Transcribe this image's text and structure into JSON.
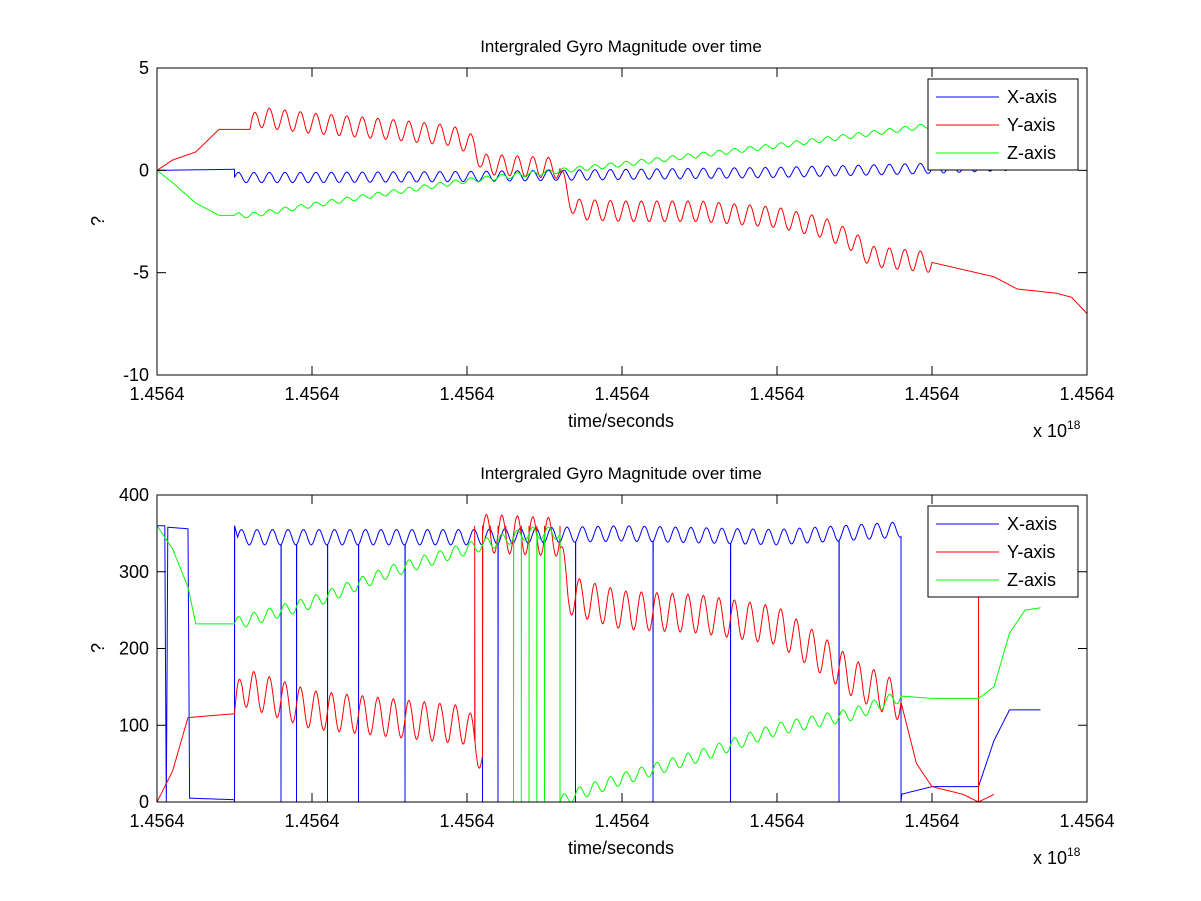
{
  "figure": {
    "background": "#ffffff"
  },
  "chart_data": [
    {
      "type": "line",
      "title": "Intergraled Gyro Magnitude over time",
      "xlabel": "time/seconds",
      "ylabel": "?",
      "x_exponent_label": "x 10",
      "x_exponent": "18",
      "xtick_labels": [
        "1.4564",
        "1.4564",
        "1.4564",
        "1.4564",
        "1.4564",
        "1.4564",
        "1.4564"
      ],
      "xlim": [
        0,
        6
      ],
      "ylim": [
        -10,
        5
      ],
      "yticks": [
        -10,
        -5,
        0,
        5
      ],
      "grid": false,
      "legend_location": "top-right",
      "series": [
        {
          "name": "X-axis",
          "color": "#0000ff",
          "points": [
            [
              0,
              0
            ],
            [
              0.5,
              0.05
            ],
            [
              0.5,
              -0.35
            ],
            [
              1,
              -0.35
            ],
            [
              2,
              -0.3
            ],
            [
              3,
              -0.2
            ],
            [
              4,
              -0.1
            ],
            [
              5,
              0.1
            ],
            [
              5.7,
              0.3
            ]
          ],
          "osc_amp": 0.25,
          "osc_period": 0.1,
          "osc_range": [
            0.5,
            5.7
          ]
        },
        {
          "name": "Y-axis",
          "color": "#ff0000",
          "points": [
            [
              0,
              0
            ],
            [
              0.1,
              0.5
            ],
            [
              0.25,
              0.9
            ],
            [
              0.4,
              2
            ],
            [
              0.6,
              2
            ],
            [
              0.65,
              2.6
            ],
            [
              1,
              2.3
            ],
            [
              1.5,
              2
            ],
            [
              1.9,
              1.7
            ],
            [
              2.05,
              1.2
            ],
            [
              2.1,
              0.3
            ],
            [
              2.6,
              0.1
            ],
            [
              2.6,
              -0.1
            ],
            [
              2.65,
              -1.2
            ],
            [
              2.7,
              -1.9
            ],
            [
              3.0,
              -2
            ],
            [
              3.5,
              -2
            ],
            [
              4.0,
              -2.3
            ],
            [
              4.3,
              -2.8
            ],
            [
              4.5,
              -3.5
            ],
            [
              4.6,
              -4.2
            ],
            [
              5.0,
              -4.5
            ],
            [
              5.4,
              -5.2
            ],
            [
              5.55,
              -5.8
            ],
            [
              5.8,
              -6
            ],
            [
              5.9,
              -6.2
            ],
            [
              6.0,
              -7.0
            ],
            [
              6.1,
              -7.4
            ],
            [
              6.3,
              -7.4
            ]
          ],
          "osc_amp": 0.5,
          "osc_period": 0.1,
          "osc_range": [
            0.6,
            5.0
          ]
        },
        {
          "name": "Z-axis",
          "color": "#00ff00",
          "points": [
            [
              0,
              0
            ],
            [
              0.1,
              -0.6
            ],
            [
              0.25,
              -1.6
            ],
            [
              0.4,
              -2.2
            ],
            [
              0.6,
              -2.2
            ],
            [
              1,
              -1.7
            ],
            [
              2,
              -0.5
            ],
            [
              3,
              0.3
            ],
            [
              4,
              1.2
            ],
            [
              5,
              2.2
            ],
            [
              5.4,
              2.5
            ],
            [
              5.6,
              4.4
            ],
            [
              5.7,
              4.4
            ]
          ],
          "osc_amp": 0.12,
          "osc_period": 0.1,
          "osc_range": [
            0.5,
            5.5
          ]
        }
      ]
    },
    {
      "type": "line",
      "title": "Intergraled Gyro Magnitude over time",
      "xlabel": "time/seconds",
      "ylabel": "?",
      "x_exponent_label": "x 10",
      "x_exponent": "18",
      "xtick_labels": [
        "1.4564",
        "1.4564",
        "1.4564",
        "1.4564",
        "1.4564",
        "1.4564",
        "1.4564"
      ],
      "xlim": [
        0,
        6
      ],
      "ylim": [
        0,
        400
      ],
      "yticks": [
        0,
        100,
        200,
        300,
        400
      ],
      "grid": false,
      "legend_location": "top-right",
      "series": [
        {
          "name": "X-axis",
          "color": "#0000ff",
          "points": [
            [
              0,
              360
            ],
            [
              0.05,
              360
            ],
            [
              0.06,
              0
            ],
            [
              0.07,
              358
            ],
            [
              0.2,
              356
            ],
            [
              0.21,
              5
            ],
            [
              0.5,
              3
            ],
            [
              0.5,
              360
            ],
            [
              0.52,
              345
            ],
            [
              1,
              345
            ],
            [
              2,
              345
            ],
            [
              3,
              350
            ],
            [
              4,
              345
            ],
            [
              4.8,
              355
            ],
            [
              4.8,
              10
            ],
            [
              5.0,
              20
            ],
            [
              5.3,
              20
            ],
            [
              5.4,
              80
            ],
            [
              5.5,
              120
            ],
            [
              5.7,
              120
            ]
          ],
          "osc_amp": 10,
          "osc_period": 0.1,
          "osc_range": [
            0.52,
            4.8
          ],
          "spike_range": [
            0.5,
            4.8
          ],
          "spike_period": 0.1,
          "spike_to": 0
        },
        {
          "name": "Y-axis",
          "color": "#ff0000",
          "points": [
            [
              0,
              0
            ],
            [
              0.1,
              40
            ],
            [
              0.2,
              110
            ],
            [
              0.5,
              115
            ],
            [
              0.55,
              150
            ],
            [
              1,
              120
            ],
            [
              1.5,
              110
            ],
            [
              2,
              100
            ],
            [
              2.1,
              60
            ],
            [
              2.1,
              350
            ],
            [
              2.6,
              345
            ],
            [
              2.6,
              330
            ],
            [
              2.65,
              270
            ],
            [
              3,
              250
            ],
            [
              3.5,
              245
            ],
            [
              4.0,
              230
            ],
            [
              4.3,
              190
            ],
            [
              4.5,
              160
            ],
            [
              4.8,
              130
            ],
            [
              4.9,
              50
            ],
            [
              5.0,
              20
            ],
            [
              5.2,
              10
            ],
            [
              5.3,
              0
            ],
            [
              5.3,
              360
            ],
            [
              5.3,
              0
            ],
            [
              5.4,
              10
            ]
          ],
          "osc_amp": 25,
          "osc_period": 0.1,
          "osc_range": [
            0.5,
            4.8
          ],
          "spike_range": [
            2.05,
            2.6
          ],
          "spike_period": 0.05,
          "spike_to": 360
        },
        {
          "name": "Z-axis",
          "color": "#00ff00",
          "points": [
            [
              0,
              360
            ],
            [
              0.1,
              330
            ],
            [
              0.2,
              280
            ],
            [
              0.25,
              232
            ],
            [
              0.5,
              232
            ],
            [
              1,
              260
            ],
            [
              1.5,
              300
            ],
            [
              2,
              330
            ],
            [
              2.4,
              350
            ],
            [
              2.6,
              350
            ],
            [
              2.6,
              0
            ],
            [
              2.7,
              10
            ],
            [
              3,
              30
            ],
            [
              3.5,
              60
            ],
            [
              4,
              95
            ],
            [
              4.5,
              115
            ],
            [
              4.8,
              138
            ],
            [
              5,
              135
            ],
            [
              5.3,
              135
            ],
            [
              5.4,
              150
            ],
            [
              5.5,
              220
            ],
            [
              5.6,
              250
            ],
            [
              5.7,
              253
            ]
          ],
          "osc_amp": 8,
          "osc_period": 0.1,
          "osc_range": [
            0.5,
            4.8
          ],
          "spike_range": [
            2.3,
            2.6
          ],
          "spike_period": 0.05,
          "spike_to": 0
        }
      ]
    }
  ]
}
